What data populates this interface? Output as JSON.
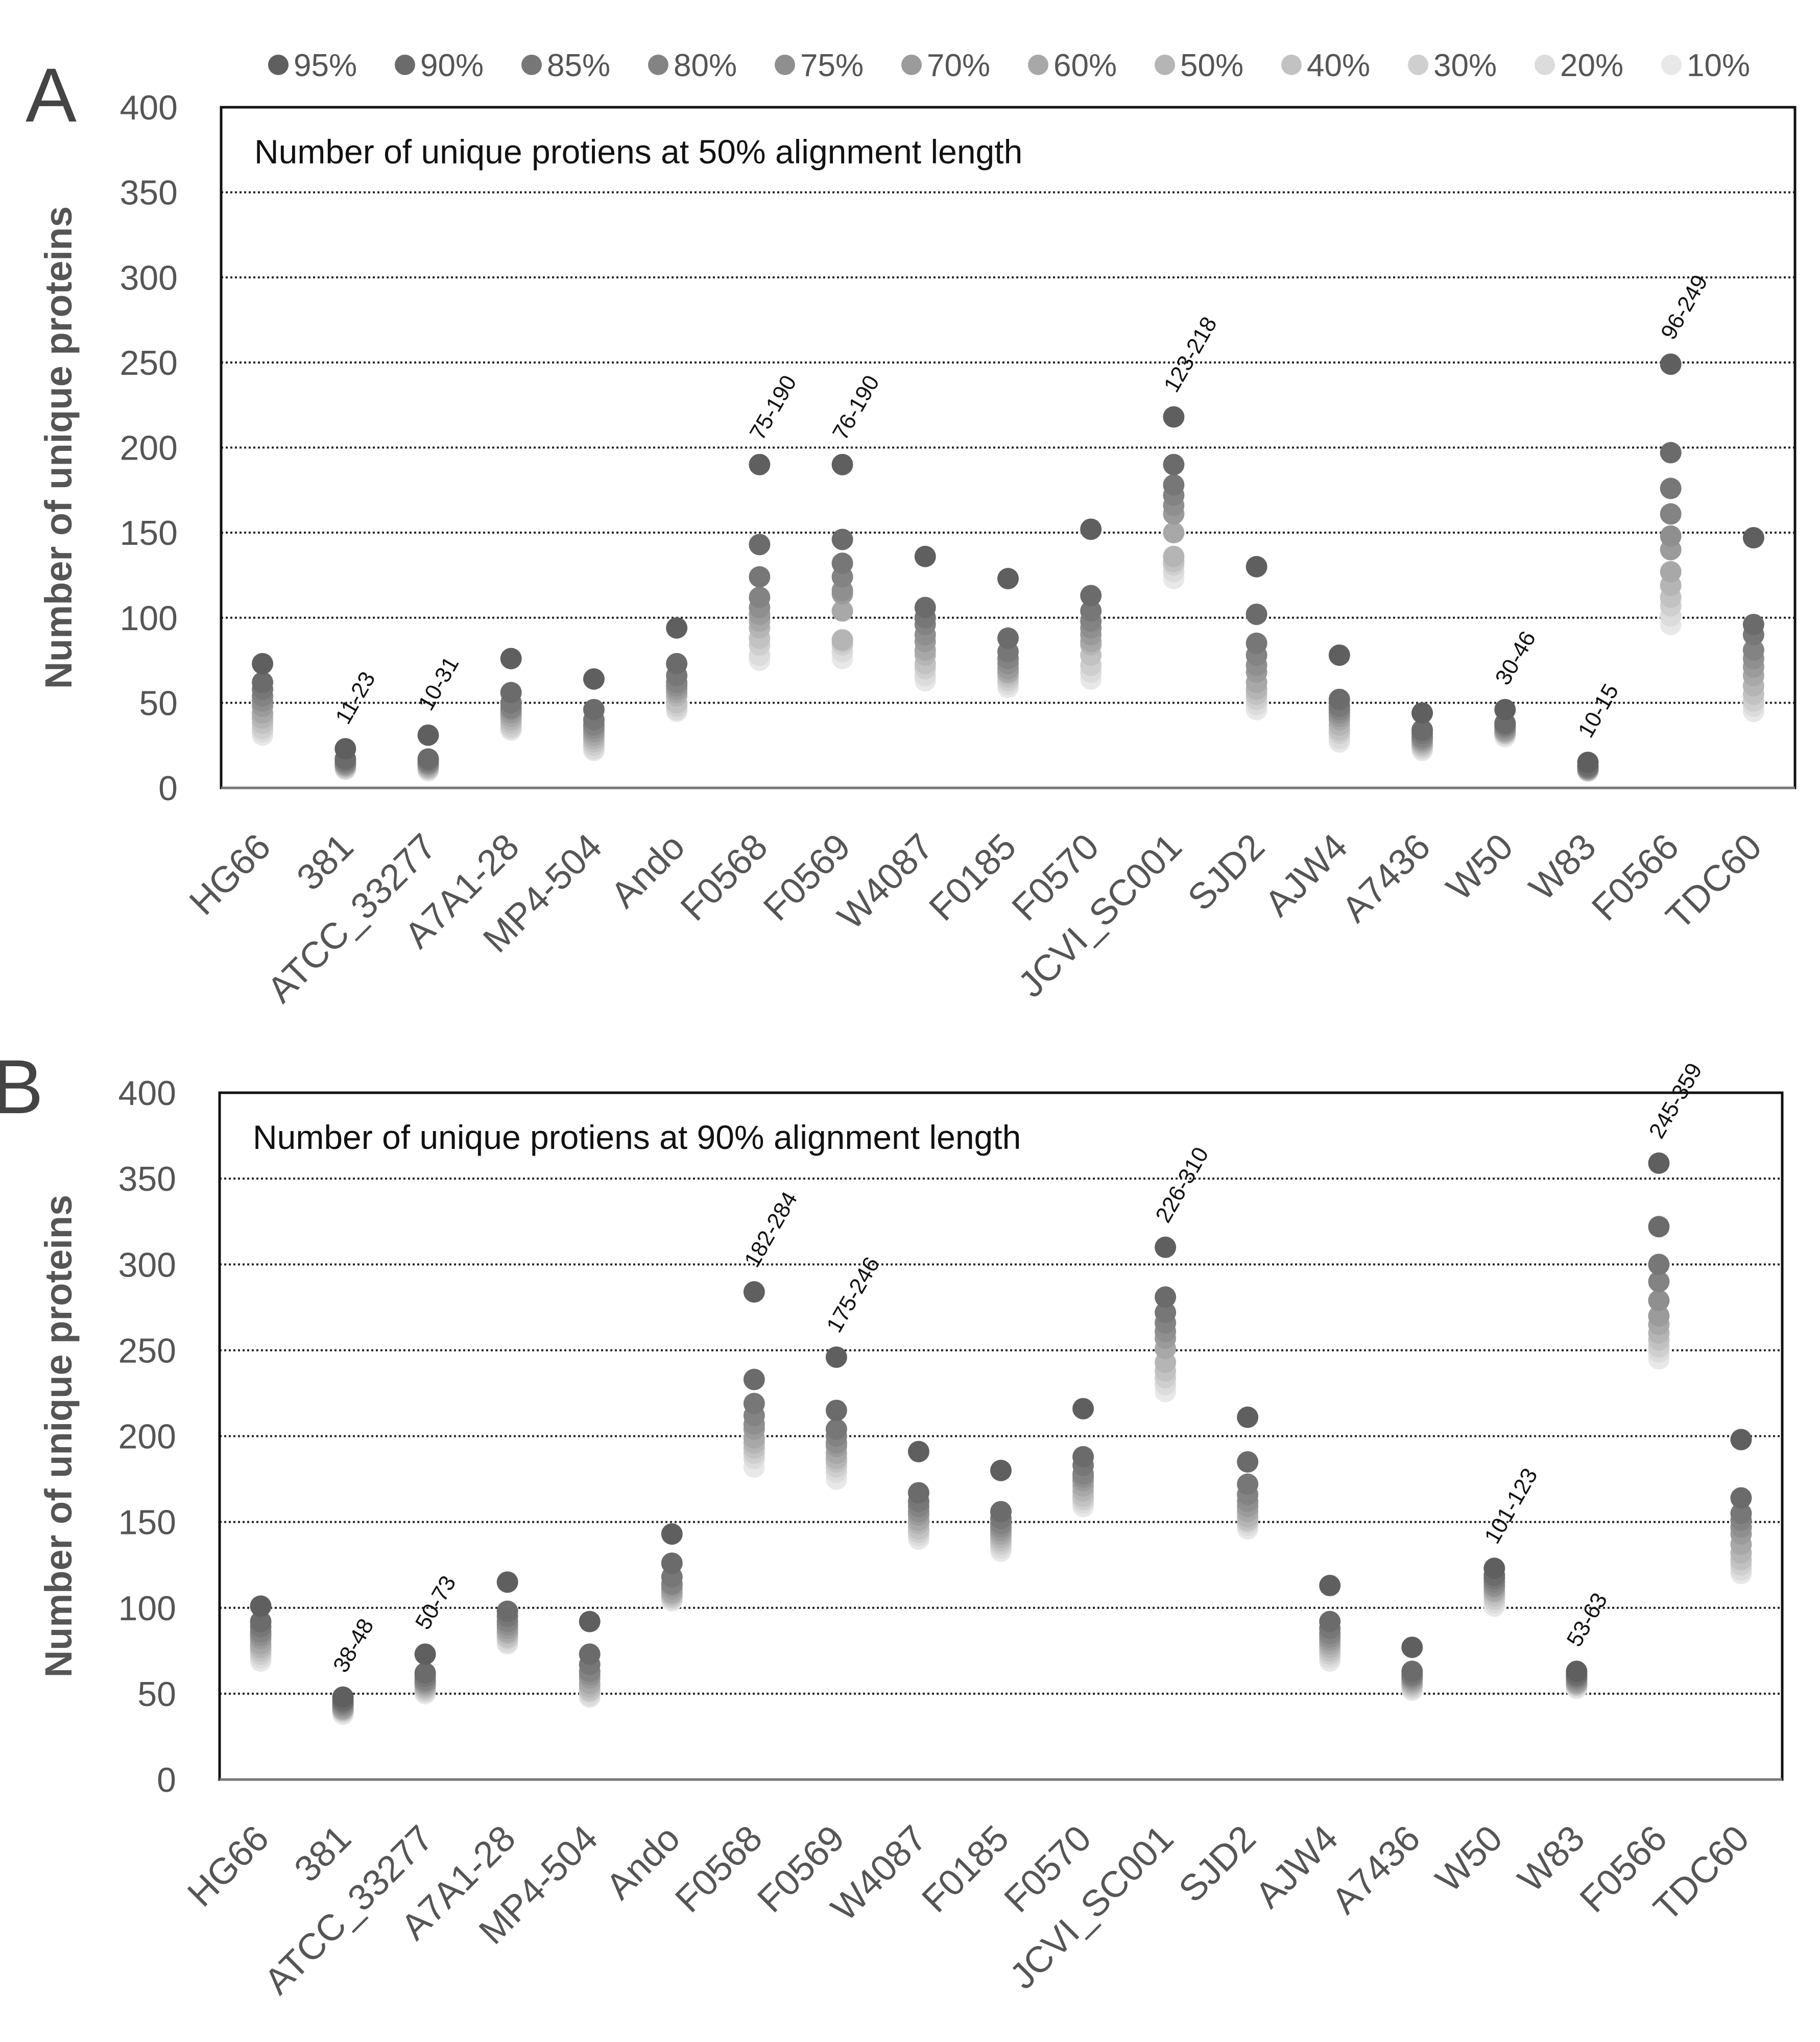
{
  "legend": {
    "entries": [
      {
        "label": "95%",
        "color": "#5f5f5f"
      },
      {
        "label": "90%",
        "color": "#6b6b6b"
      },
      {
        "label": "85%",
        "color": "#777777"
      },
      {
        "label": "80%",
        "color": "#838383"
      },
      {
        "label": "75%",
        "color": "#8f8f8f"
      },
      {
        "label": "70%",
        "color": "#9b9b9b"
      },
      {
        "label": "60%",
        "color": "#a8a8a8"
      },
      {
        "label": "50%",
        "color": "#b5b5b5"
      },
      {
        "label": "40%",
        "color": "#c2c2c2"
      },
      {
        "label": "30%",
        "color": "#cfcfcf"
      },
      {
        "label": "20%",
        "color": "#dcdcdc"
      },
      {
        "label": "10%",
        "color": "#e8e8e8"
      }
    ]
  },
  "chart_data": [
    {
      "type": "scatter",
      "panel_label": "A",
      "title": "Number of unique protiens at 50% alignment length",
      "ylabel": "Number of unique proteins",
      "xlabel": "",
      "ylim": [
        0,
        400
      ],
      "yticks": [
        0,
        50,
        100,
        150,
        200,
        250,
        300,
        350,
        400
      ],
      "grid": true,
      "legend_position": "top",
      "categories": [
        "HG66",
        "381",
        "ATCC_33277",
        "A7A1-28",
        "MP4-504",
        "Ando",
        "F0568",
        "F0569",
        "W4087",
        "F0185",
        "F0570",
        "JCVI_SC001",
        "SJD2",
        "AJW4",
        "A7436",
        "W50",
        "W83",
        "F0566",
        "TDC60"
      ],
      "series": [
        {
          "name": "95%",
          "values": [
            73,
            23,
            31,
            76,
            64,
            94,
            190,
            190,
            136,
            123,
            152,
            218,
            130,
            78,
            44,
            46,
            15,
            249,
            147
          ]
        },
        {
          "name": "90%",
          "values": [
            62,
            17,
            17,
            56,
            46,
            73,
            143,
            146,
            106,
            88,
            113,
            190,
            102,
            52,
            34,
            38,
            13,
            197,
            96
          ]
        },
        {
          "name": "85%",
          "values": [
            58,
            16,
            16,
            50,
            40,
            66,
            124,
            132,
            100,
            80,
            104,
            178,
            85,
            48,
            32,
            37,
            12,
            176,
            90
          ]
        },
        {
          "name": "80%",
          "values": [
            54,
            15,
            15,
            47,
            37,
            62,
            112,
            124,
            96,
            76,
            98,
            172,
            78,
            46,
            30,
            36,
            12,
            161,
            81
          ]
        },
        {
          "name": "75%",
          "values": [
            51,
            14,
            14,
            46,
            35,
            60,
            106,
            116,
            90,
            73,
            94,
            166,
            72,
            44,
            29,
            35,
            11,
            148,
            76
          ]
        },
        {
          "name": "70%",
          "values": [
            48,
            14,
            14,
            44,
            33,
            58,
            102,
            114,
            86,
            70,
            90,
            161,
            68,
            42,
            28,
            34,
            11,
            140,
            71
          ]
        },
        {
          "name": "60%",
          "values": [
            44,
            13,
            13,
            42,
            31,
            56,
            98,
            104,
            81,
            68,
            86,
            150,
            62,
            40,
            27,
            33,
            11,
            127,
            66
          ]
        },
        {
          "name": "50%",
          "values": [
            41,
            13,
            12,
            40,
            29,
            54,
            94,
            87,
            78,
            67,
            84,
            136,
            58,
            37,
            26,
            33,
            11,
            119,
            60
          ]
        },
        {
          "name": "40%",
          "values": [
            38,
            12,
            12,
            38,
            27,
            50,
            88,
            86,
            73,
            65,
            78,
            133,
            55,
            34,
            25,
            32,
            10,
            112,
            55
          ]
        },
        {
          "name": "30%",
          "values": [
            35,
            12,
            11,
            36,
            25,
            48,
            84,
            84,
            70,
            63,
            72,
            131,
            52,
            32,
            24,
            32,
            10,
            107,
            51
          ]
        },
        {
          "name": "20%",
          "values": [
            33,
            11,
            11,
            35,
            23,
            46,
            78,
            80,
            66,
            61,
            68,
            127,
            49,
            29,
            23,
            31,
            10,
            101,
            48
          ]
        },
        {
          "name": "10%",
          "values": [
            31,
            11,
            10,
            34,
            22,
            45,
            75,
            76,
            63,
            59,
            64,
            123,
            46,
            27,
            22,
            30,
            10,
            96,
            45
          ]
        }
      ],
      "annotations": [
        {
          "category": "381",
          "text": "11-23"
        },
        {
          "category": "ATCC_33277",
          "text": "10-31"
        },
        {
          "category": "F0568",
          "text": "75-190"
        },
        {
          "category": "F0569",
          "text": "76-190"
        },
        {
          "category": "JCVI_SC001",
          "text": "123-218"
        },
        {
          "category": "W50",
          "text": "30-46"
        },
        {
          "category": "W83",
          "text": "10-15"
        },
        {
          "category": "F0566",
          "text": "96-249"
        }
      ]
    },
    {
      "type": "scatter",
      "panel_label": "B",
      "title": "Number of unique protiens at 90% alignment length",
      "ylabel": "Number of unique proteins",
      "xlabel": "",
      "ylim": [
        0,
        400
      ],
      "yticks": [
        0,
        50,
        100,
        150,
        200,
        250,
        300,
        350,
        400
      ],
      "grid": true,
      "categories": [
        "HG66",
        "381",
        "ATCC_33277",
        "A7A1-28",
        "MP4-504",
        "Ando",
        "F0568",
        "F0569",
        "W4087",
        "F0185",
        "F0570",
        "JCVI_SC001",
        "SJD2",
        "AJW4",
        "A7436",
        "W50",
        "W83",
        "F0566",
        "TDC60"
      ],
      "series": [
        {
          "name": "95%",
          "values": [
            101,
            48,
            73,
            115,
            92,
            143,
            284,
            246,
            191,
            180,
            216,
            310,
            211,
            113,
            77,
            123,
            63,
            359,
            198
          ]
        },
        {
          "name": "90%",
          "values": [
            92,
            46,
            62,
            98,
            73,
            126,
            233,
            215,
            167,
            156,
            188,
            281,
            185,
            92,
            63,
            119,
            61,
            322,
            164
          ]
        },
        {
          "name": "85%",
          "values": [
            89,
            45,
            60,
            95,
            67,
            118,
            219,
            204,
            162,
            152,
            183,
            272,
            172,
            88,
            61,
            117,
            60,
            300,
            155
          ]
        },
        {
          "name": "80%",
          "values": [
            86,
            44,
            58,
            92,
            63,
            114,
            212,
            200,
            159,
            149,
            178,
            266,
            166,
            85,
            60,
            115,
            59,
            290,
            151
          ]
        },
        {
          "name": "75%",
          "values": [
            84,
            43,
            57,
            90,
            61,
            113,
            207,
            196,
            156,
            147,
            176,
            261,
            162,
            83,
            59,
            113,
            58,
            279,
            147
          ]
        },
        {
          "name": "70%",
          "values": [
            82,
            42,
            56,
            88,
            59,
            111,
            204,
            194,
            154,
            145,
            174,
            257,
            159,
            81,
            58,
            112,
            57,
            270,
            143
          ]
        },
        {
          "name": "60%",
          "values": [
            79,
            41,
            55,
            86,
            56,
            109,
            199,
            190,
            151,
            143,
            171,
            251,
            156,
            79,
            57,
            110,
            56,
            265,
            137
          ]
        },
        {
          "name": "50%",
          "values": [
            77,
            41,
            54,
            85,
            54,
            108,
            196,
            187,
            149,
            141,
            168,
            243,
            153,
            77,
            56,
            109,
            56,
            260,
            132
          ]
        },
        {
          "name": "40%",
          "values": [
            75,
            40,
            53,
            83,
            52,
            107,
            193,
            185,
            146,
            139,
            165,
            238,
            151,
            75,
            55,
            107,
            55,
            256,
            128
          ]
        },
        {
          "name": "30%",
          "values": [
            73,
            40,
            52,
            82,
            51,
            106,
            190,
            182,
            144,
            137,
            163,
            234,
            150,
            73,
            54,
            105,
            55,
            252,
            125
          ]
        },
        {
          "name": "20%",
          "values": [
            71,
            39,
            51,
            80,
            49,
            105,
            187,
            179,
            142,
            135,
            161,
            230,
            148,
            71,
            53,
            103,
            54,
            249,
            122
          ]
        },
        {
          "name": "10%",
          "values": [
            69,
            38,
            50,
            79,
            48,
            104,
            182,
            175,
            140,
            133,
            159,
            226,
            146,
            69,
            52,
            101,
            53,
            245,
            120
          ]
        }
      ],
      "annotations": [
        {
          "category": "381",
          "text": "38-48"
        },
        {
          "category": "ATCC_33277",
          "text": "50-73"
        },
        {
          "category": "F0568",
          "text": "182-284"
        },
        {
          "category": "F0569",
          "text": "175-246"
        },
        {
          "category": "JCVI_SC001",
          "text": "226-310"
        },
        {
          "category": "W50",
          "text": "101-123"
        },
        {
          "category": "W83",
          "text": "53-63"
        },
        {
          "category": "F0566",
          "text": "245-359"
        }
      ]
    }
  ]
}
